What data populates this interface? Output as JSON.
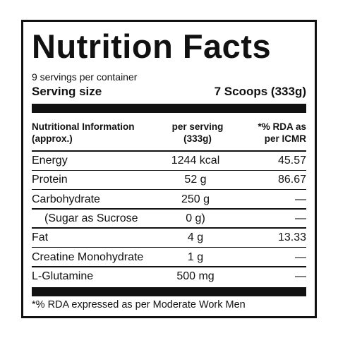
{
  "title": "Nutrition Facts",
  "servings_per_container": "9 servings per container",
  "serving_size": {
    "label": "Serving size",
    "value": "7 Scoops (333g)"
  },
  "header": {
    "nutrient_line1": "Nutritional Information",
    "nutrient_line2": "(approx.)",
    "per_serving_line1": "per serving",
    "per_serving_line2": "(333g)",
    "rda_line1": "*% RDA as",
    "rda_line2": "per ICMR"
  },
  "rows": [
    {
      "name": "Energy",
      "amount": "1244 kcal",
      "rda": "45.57"
    },
    {
      "name": "Protein",
      "amount": "52 g",
      "rda": "86.67"
    },
    {
      "name": "Carbohydrate",
      "amount": "250 g",
      "rda": "—"
    },
    {
      "name": "(Sugar as Sucrose",
      "amount": "0 g)",
      "rda": "—"
    },
    {
      "name": "Fat",
      "amount": "4 g",
      "rda": "13.33"
    },
    {
      "name": "Creatine Monohydrate",
      "amount": "1 g",
      "rda": "—"
    },
    {
      "name": "L-Glutamine",
      "amount": "500 mg",
      "rda": "—"
    }
  ],
  "footnote": "*% RDA expressed as per Moderate Work Men"
}
